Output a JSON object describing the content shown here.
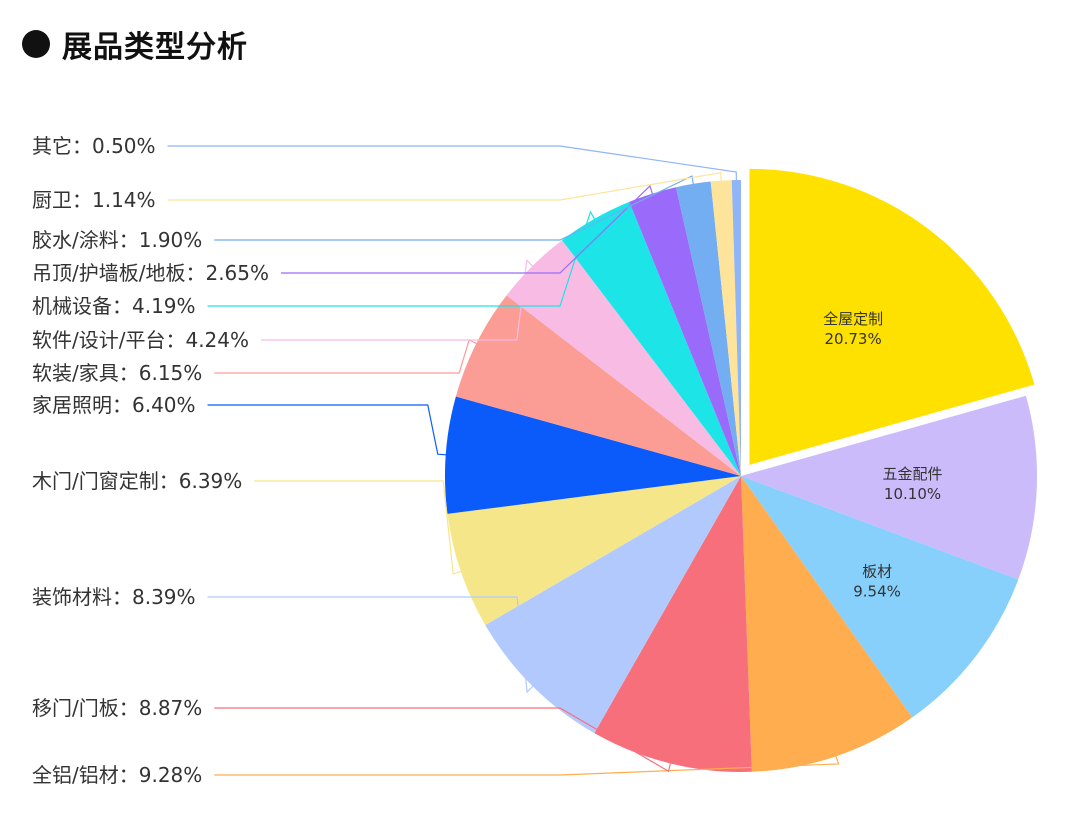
{
  "page": {
    "title": "展品类型分析"
  },
  "chart_data": {
    "type": "pie",
    "title": "展品类型分析",
    "unit": "%",
    "slices": [
      {
        "name": "全屋定制",
        "value": 20.73,
        "display": "20.73%",
        "color": "#FFE100",
        "label_style": "inside",
        "label_text": "全屋定制",
        "exploded": true
      },
      {
        "name": "五金配件",
        "value": 10.1,
        "display": "10.10%",
        "color": "#CBBBFB",
        "label_style": "inside",
        "label_text": "五金配件"
      },
      {
        "name": "板材",
        "value": 9.54,
        "display": "9.54%",
        "color": "#87D0FB",
        "label_style": "inside",
        "label_text": "板材"
      },
      {
        "name": "全铝/铝材",
        "value": 9.28,
        "display": "9.28%",
        "color": "#FFAD4E",
        "label_style": "outside",
        "label_text": "全铝/铝材：9.28%"
      },
      {
        "name": "移门/门板",
        "value": 8.87,
        "display": "8.87%",
        "color": "#F76F7B",
        "label_style": "outside",
        "label_text": "移门/门板：8.87%"
      },
      {
        "name": "装饰材料",
        "value": 8.39,
        "display": "8.39%",
        "color": "#B2C9FD",
        "label_style": "outside",
        "label_text": "装饰材料：8.39%"
      },
      {
        "name": "木门/门窗定制",
        "value": 6.39,
        "display": "6.39%",
        "color": "#F6E68A",
        "label_style": "outside",
        "label_text": "木门/门窗定制：6.39%"
      },
      {
        "name": "家居照明",
        "value": 6.4,
        "display": "6.40%",
        "color": "#0B5BFB",
        "label_style": "outside",
        "label_text": "家居照明：6.40%"
      },
      {
        "name": "软装/家具",
        "value": 6.15,
        "display": "6.15%",
        "color": "#FB9C95",
        "label_style": "outside",
        "label_text": "软装/家具：6.15%"
      },
      {
        "name": "软件/设计/平台",
        "value": 4.24,
        "display": "4.24%",
        "color": "#F8BCE4",
        "label_style": "outside",
        "label_text": "软件/设计/平台：4.24%"
      },
      {
        "name": "机械设备",
        "value": 4.19,
        "display": "4.19%",
        "color": "#1DE4E6",
        "label_style": "outside",
        "label_text": "机械设备：4.19%"
      },
      {
        "name": "吊顶/护墙板/地板",
        "value": 2.65,
        "display": "2.65%",
        "color": "#9A6BFA",
        "label_style": "outside",
        "label_text": "吊顶/护墙板/地板：2.65%"
      },
      {
        "name": "胶水/涂料",
        "value": 1.9,
        "display": "1.90%",
        "color": "#72AEF1",
        "label_style": "outside",
        "label_text": "胶水/涂料：1.90%"
      },
      {
        "name": "厨卫",
        "value": 1.14,
        "display": "1.14%",
        "color": "#FDE49A",
        "label_style": "outside",
        "label_text": "厨卫：1.14%"
      },
      {
        "name": "其它",
        "value": 0.5,
        "display": "0.50%",
        "color": "#8FB4F8",
        "label_style": "outside",
        "label_text": "其它：0.50%"
      }
    ]
  }
}
